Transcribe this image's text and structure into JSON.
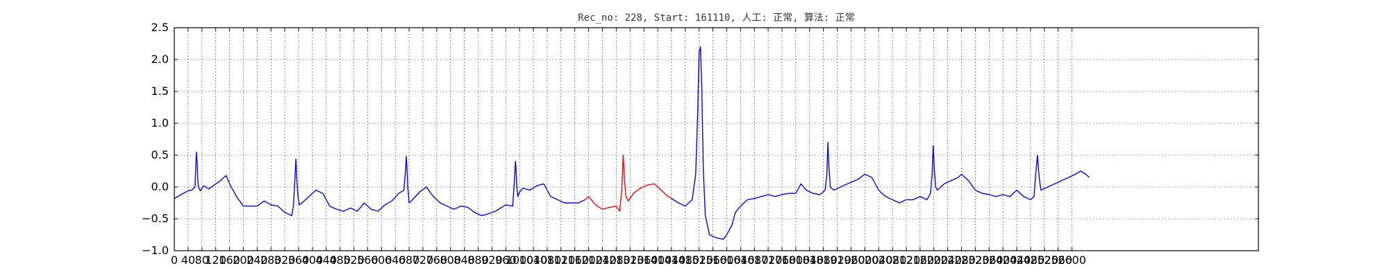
{
  "chart_data": {
    "type": "line",
    "title": "Rec_no: 228, Start: 161110, 人工: 正常, 算法: 正常",
    "xlabel": "",
    "ylabel": "",
    "xlim": [
      0,
      3140
    ],
    "ylim": [
      -1.0,
      2.5
    ],
    "grid": true,
    "yticks": [
      -1.0,
      -0.5,
      0.0,
      0.5,
      1.0,
      1.5,
      2.0,
      2.5
    ],
    "ytick_labels": [
      "−1.0",
      "−0.5",
      "0.0",
      "0.5",
      "1.0",
      "1.5",
      "2.0",
      "2.5"
    ],
    "xticks": [
      0,
      40,
      80,
      120,
      160,
      200,
      240,
      280,
      320,
      360,
      400,
      440,
      480,
      520,
      560,
      600,
      640,
      680,
      720,
      760,
      800,
      840,
      880,
      920,
      960,
      1000,
      1040,
      1080,
      1120,
      1160,
      1200,
      1240,
      1280,
      1320,
      1360,
      1400,
      1440,
      1480,
      1520,
      1560,
      1600,
      1640,
      1680,
      1720,
      1760,
      1800,
      1840,
      1880,
      1920,
      1960,
      2000,
      2040,
      2080,
      2120,
      2160,
      2200,
      2240,
      2280,
      2320,
      2360,
      2400,
      2440,
      2480,
      2520,
      2560,
      2600
    ],
    "xtick_labels": [
      "0",
      "40",
      "80",
      "120",
      "160",
      "200",
      "240",
      "280",
      "320",
      "360",
      "400",
      "440",
      "480",
      "520",
      "560",
      "600",
      "640",
      "680",
      "720",
      "760",
      "800",
      "840",
      "880",
      "920",
      "960",
      "1000",
      "1040",
      "1080",
      "1120",
      "1160",
      "1200",
      "1240",
      "1280",
      "1320",
      "1360",
      "1400",
      "1440",
      "1480",
      "1520",
      "1560",
      "1600",
      "1640",
      "1680",
      "1720",
      "1760",
      "1800",
      "1840",
      "1880",
      "1920",
      "1960",
      "2000",
      "2040",
      "2080",
      "2120",
      "2160",
      "2200",
      "2240",
      "2280",
      "2320",
      "2360",
      "2400",
      "2440",
      "2480",
      "2520",
      "2560",
      "2600"
    ],
    "series": [
      {
        "color": "#0000ff",
        "x": [
          0,
          20,
          40,
          50,
          60,
          62,
          64,
          66,
          68,
          70,
          75,
          85,
          100,
          120,
          130,
          150,
          160,
          180,
          200,
          220,
          240,
          260,
          280,
          300,
          320,
          340,
          345,
          350,
          352,
          354,
          358,
          362,
          370,
          390,
          410,
          430,
          450,
          470,
          490,
          510,
          530,
          550,
          570,
          590,
          610,
          630,
          650,
          665,
          670,
          672,
          674,
          676,
          680,
          690,
          710,
          730,
          750,
          770,
          790,
          810,
          830,
          850,
          870,
          890,
          910,
          930,
          960,
          980,
          985,
          988,
          990,
          992,
          995,
          1000,
          1010,
          1030,
          1050,
          1070,
          1090,
          1110,
          1130,
          1150,
          1170,
          1190
        ],
        "y": [
          -0.18,
          -0.12,
          -0.06,
          -0.05,
          0.0,
          0.3,
          0.55,
          0.4,
          0.1,
          0.0,
          -0.06,
          0.02,
          -0.03,
          0.05,
          0.08,
          0.18,
          0.05,
          -0.15,
          -0.3,
          -0.3,
          -0.3,
          -0.22,
          -0.28,
          -0.3,
          -0.4,
          -0.45,
          -0.3,
          0.2,
          0.44,
          0.2,
          -0.15,
          -0.28,
          -0.25,
          -0.15,
          -0.05,
          -0.1,
          -0.3,
          -0.35,
          -0.38,
          -0.33,
          -0.38,
          -0.25,
          -0.35,
          -0.38,
          -0.28,
          -0.22,
          -0.1,
          -0.05,
          0.3,
          0.48,
          0.25,
          0.0,
          -0.25,
          -0.2,
          -0.08,
          0.0,
          -0.15,
          -0.25,
          -0.3,
          -0.35,
          -0.3,
          -0.32,
          -0.4,
          -0.45,
          -0.42,
          -0.38,
          -0.28,
          -0.3,
          0.1,
          0.4,
          0.25,
          0.0,
          -0.15,
          -0.08,
          -0.02,
          -0.05,
          0.02,
          0.05,
          -0.15,
          -0.2,
          -0.25,
          -0.25,
          -0.25,
          -0.2
        ]
      },
      {
        "color": "#ff0000",
        "x": [
          1190,
          1200,
          1220,
          1240,
          1260,
          1280,
          1290,
          1296,
          1300,
          1304,
          1308,
          1315,
          1330,
          1350,
          1370,
          1390,
          1410,
          1430,
          1440
        ],
        "y": [
          -0.2,
          -0.15,
          -0.28,
          -0.35,
          -0.32,
          -0.3,
          -0.38,
          -0.05,
          0.5,
          0.1,
          -0.15,
          -0.22,
          -0.1,
          -0.02,
          0.03,
          0.05,
          -0.05,
          -0.15,
          -0.18
        ]
      },
      {
        "color": "#0000ff",
        "x": [
          1440,
          1460,
          1480,
          1500,
          1510,
          1516,
          1520,
          1524,
          1528,
          1532,
          1538,
          1550,
          1570,
          1590,
          1600,
          1615,
          1625,
          1640,
          1660,
          1680,
          1700,
          1720,
          1740,
          1760,
          1780,
          1800,
          1815,
          1830,
          1850,
          1870,
          1885,
          1890,
          1893,
          1896,
          1900,
          1910,
          1930,
          1950,
          1980,
          2000,
          2020,
          2040,
          2060,
          2080,
          2100,
          2120,
          2140,
          2160,
          2180,
          2190,
          2195,
          2198,
          2201,
          2205,
          2210,
          2230,
          2250,
          2270,
          2280,
          2300,
          2320,
          2340,
          2360,
          2380,
          2400,
          2420,
          2440,
          2460,
          2480,
          2490,
          2495,
          2500,
          2505,
          2510,
          2530,
          2550,
          2570,
          2590,
          2610,
          2625,
          2640,
          2650
        ],
        "y": [
          -0.18,
          -0.25,
          -0.3,
          -0.2,
          0.2,
          1.2,
          2.1,
          2.2,
          1.5,
          0.3,
          -0.45,
          -0.75,
          -0.8,
          -0.82,
          -0.75,
          -0.6,
          -0.4,
          -0.3,
          -0.2,
          -0.18,
          -0.15,
          -0.12,
          -0.15,
          -0.12,
          -0.1,
          -0.1,
          0.05,
          -0.05,
          -0.1,
          -0.12,
          -0.05,
          0.2,
          0.7,
          0.3,
          0.0,
          -0.05,
          0.0,
          0.05,
          0.12,
          0.2,
          0.15,
          -0.05,
          -0.15,
          -0.2,
          -0.25,
          -0.2,
          -0.2,
          -0.15,
          -0.2,
          -0.1,
          0.2,
          0.65,
          0.3,
          0.0,
          -0.05,
          0.05,
          0.1,
          0.15,
          0.2,
          0.1,
          -0.05,
          -0.1,
          -0.12,
          -0.15,
          -0.12,
          -0.15,
          -0.05,
          -0.15,
          -0.2,
          -0.15,
          0.2,
          0.5,
          0.15,
          -0.05,
          0.0,
          0.05,
          0.1,
          0.15,
          0.2,
          0.25,
          0.2,
          0.15
        ]
      }
    ]
  }
}
